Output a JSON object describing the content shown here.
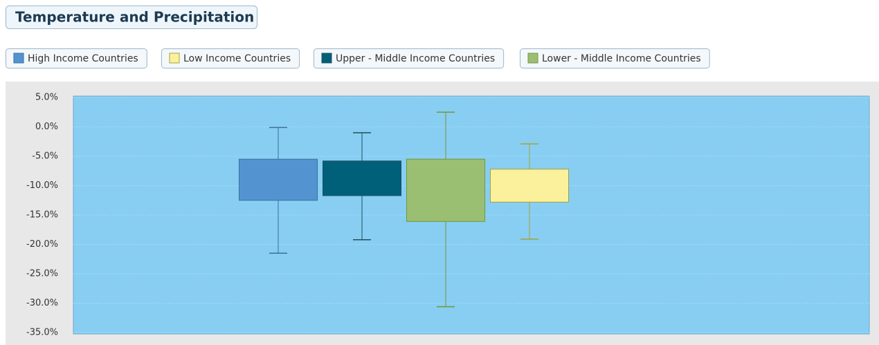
{
  "chart_data": {
    "type": "box",
    "title": "Temperature and Precipitation",
    "series": [
      {
        "name": "High Income Countries",
        "color": "#5393d0",
        "stroke": "#3a6f9f",
        "low": -21.5,
        "q1": -12.5,
        "q3": -5.5,
        "high": -0.1
      },
      {
        "name": "Upper - Middle Income Countries",
        "color": "#00607a",
        "stroke": "#1f4f60",
        "low": -19.2,
        "q1": -11.7,
        "q3": -5.8,
        "high": -1.0
      },
      {
        "name": "Lower - Middle Income Countries",
        "color": "#9bbf72",
        "stroke": "#74963a",
        "low": -30.6,
        "q1": -16.1,
        "q3": -5.5,
        "high": 2.5
      },
      {
        "name": "Low Income Countries",
        "color": "#fbf19c",
        "stroke": "#a4a23a",
        "low": -19.1,
        "q1": -12.8,
        "q3": -7.2,
        "high": -2.9
      }
    ],
    "ylim": [
      -35,
      5
    ],
    "yticks": [
      {
        "value": 5,
        "label": "5.0%"
      },
      {
        "value": 0,
        "label": "0.0%"
      },
      {
        "value": -5,
        "label": "-5.0%"
      },
      {
        "value": -10,
        "label": "-10.0%"
      },
      {
        "value": -15,
        "label": "-15.0%"
      },
      {
        "value": -20,
        "label": "-20.0%"
      },
      {
        "value": -25,
        "label": "-25.0%"
      },
      {
        "value": -30,
        "label": "-30.0%"
      },
      {
        "value": -35,
        "label": "-35.0%"
      }
    ],
    "grid": true
  }
}
